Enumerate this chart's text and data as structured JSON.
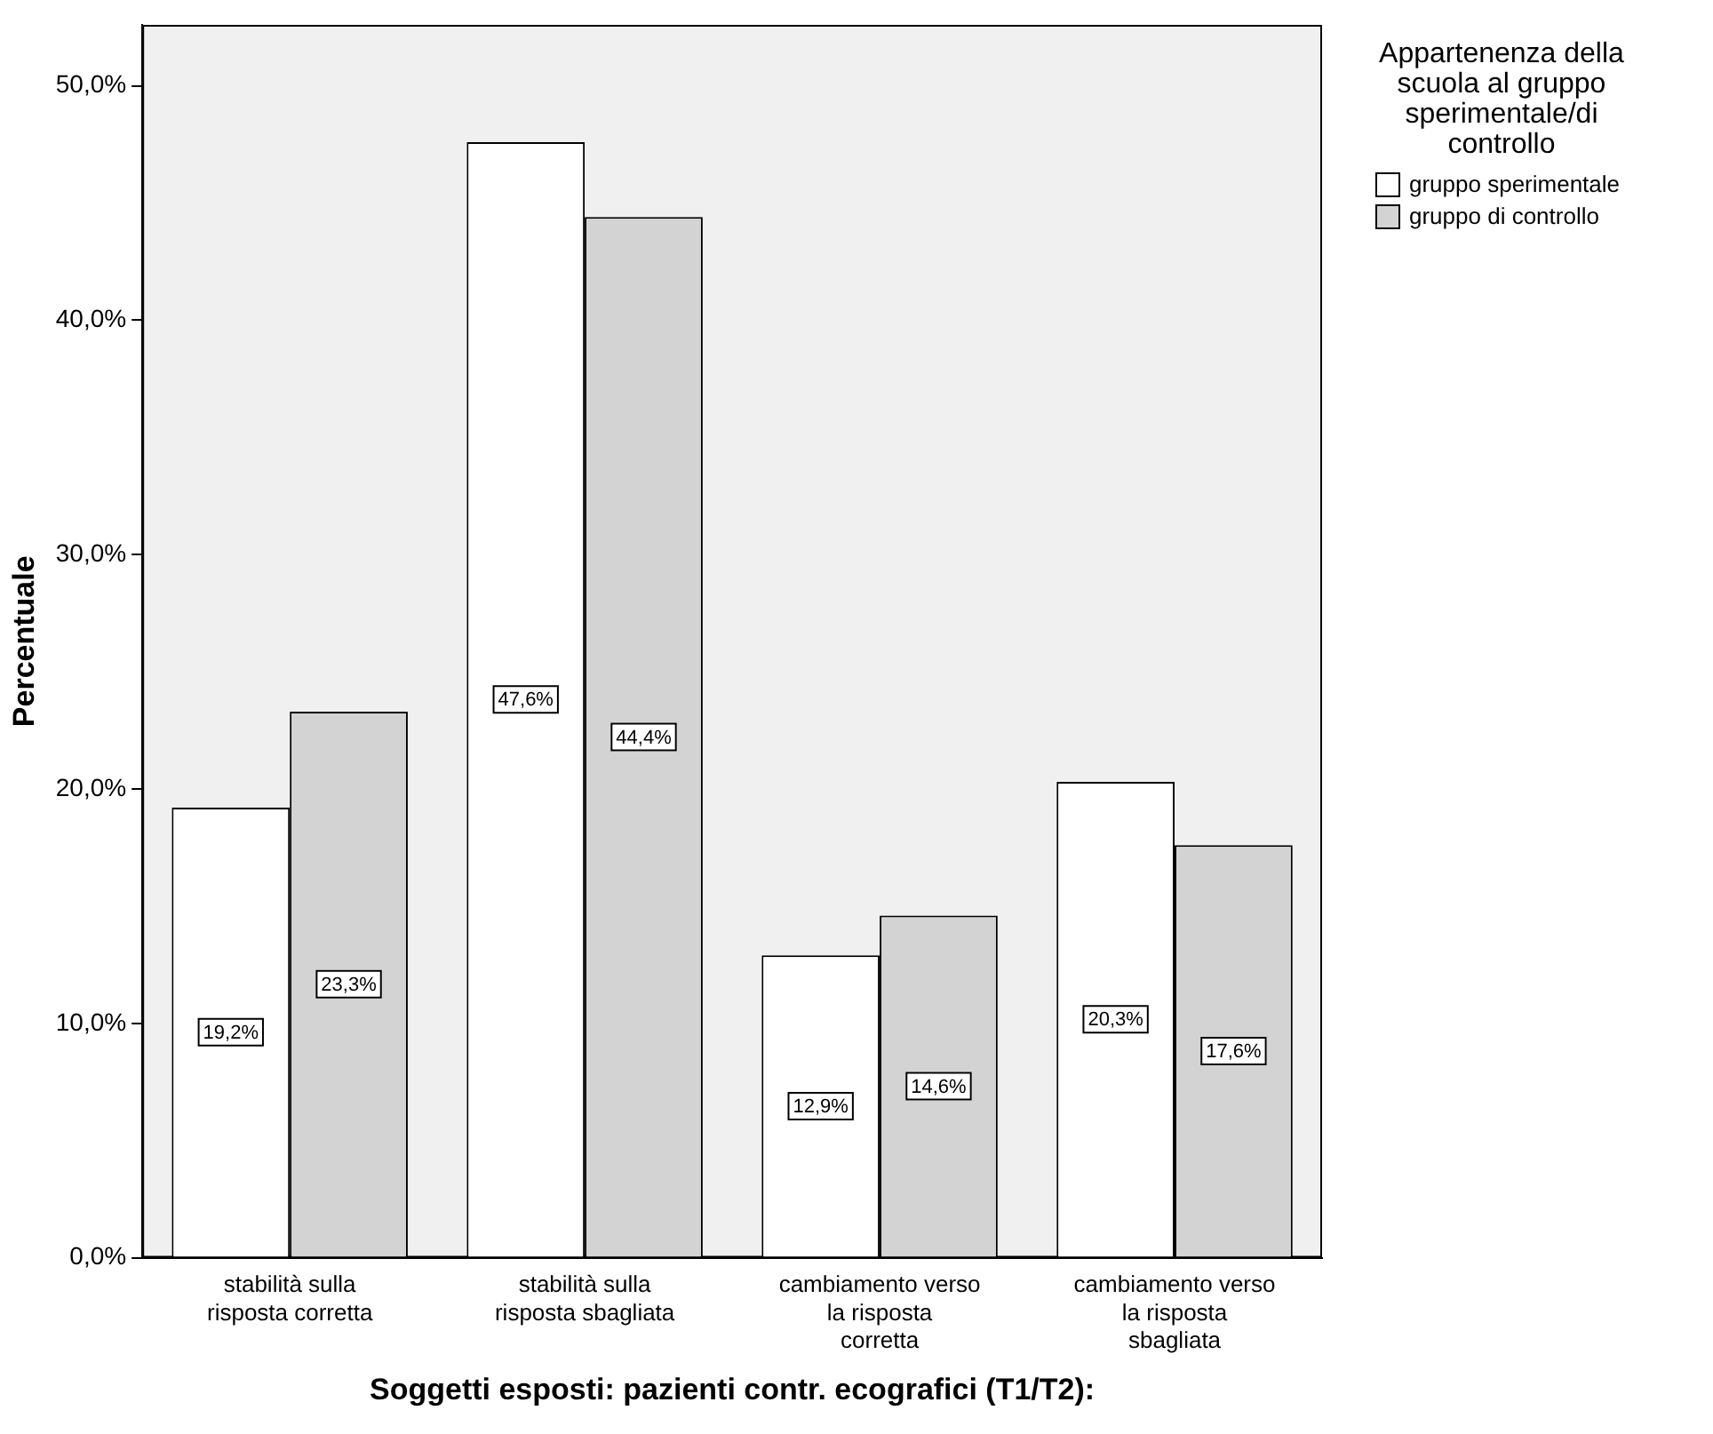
{
  "chart_data": {
    "type": "bar",
    "xlabel": "Soggetti esposti: pazienti contr. ecografici (T1/T2):",
    "ylabel": "Percentuale",
    "legend_title": "Appartenenza della scuola al gruppo sperimentale/di controllo",
    "categories": [
      "stabilità sulla risposta corretta",
      "stabilità sulla risposta sbagliata",
      "cambiamento verso la risposta corretta",
      "cambiamento verso la risposta sbagliata"
    ],
    "series": [
      {
        "name": "gruppo sperimentale",
        "color": "#ffffff",
        "values": [
          19.2,
          47.6,
          12.9,
          20.3
        ],
        "value_labels": [
          "19,2%",
          "47,6%",
          "12,9%",
          "20,3%"
        ]
      },
      {
        "name": "gruppo di controllo",
        "color": "#d3d3d3",
        "values": [
          23.3,
          44.4,
          14.6,
          17.6
        ],
        "value_labels": [
          "23,3%",
          "44,4%",
          "14,6%",
          "17,6%"
        ]
      }
    ],
    "ylim": [
      0,
      52.6
    ],
    "yticks": [
      {
        "value": 0,
        "label": "0,0%"
      },
      {
        "value": 10,
        "label": "10,0%"
      },
      {
        "value": 20,
        "label": "20,0%"
      },
      {
        "value": 30,
        "label": "30,0%"
      },
      {
        "value": 40,
        "label": "40,0%"
      },
      {
        "value": 50,
        "label": "50,0%"
      }
    ],
    "grid": false,
    "legend": "top right"
  }
}
